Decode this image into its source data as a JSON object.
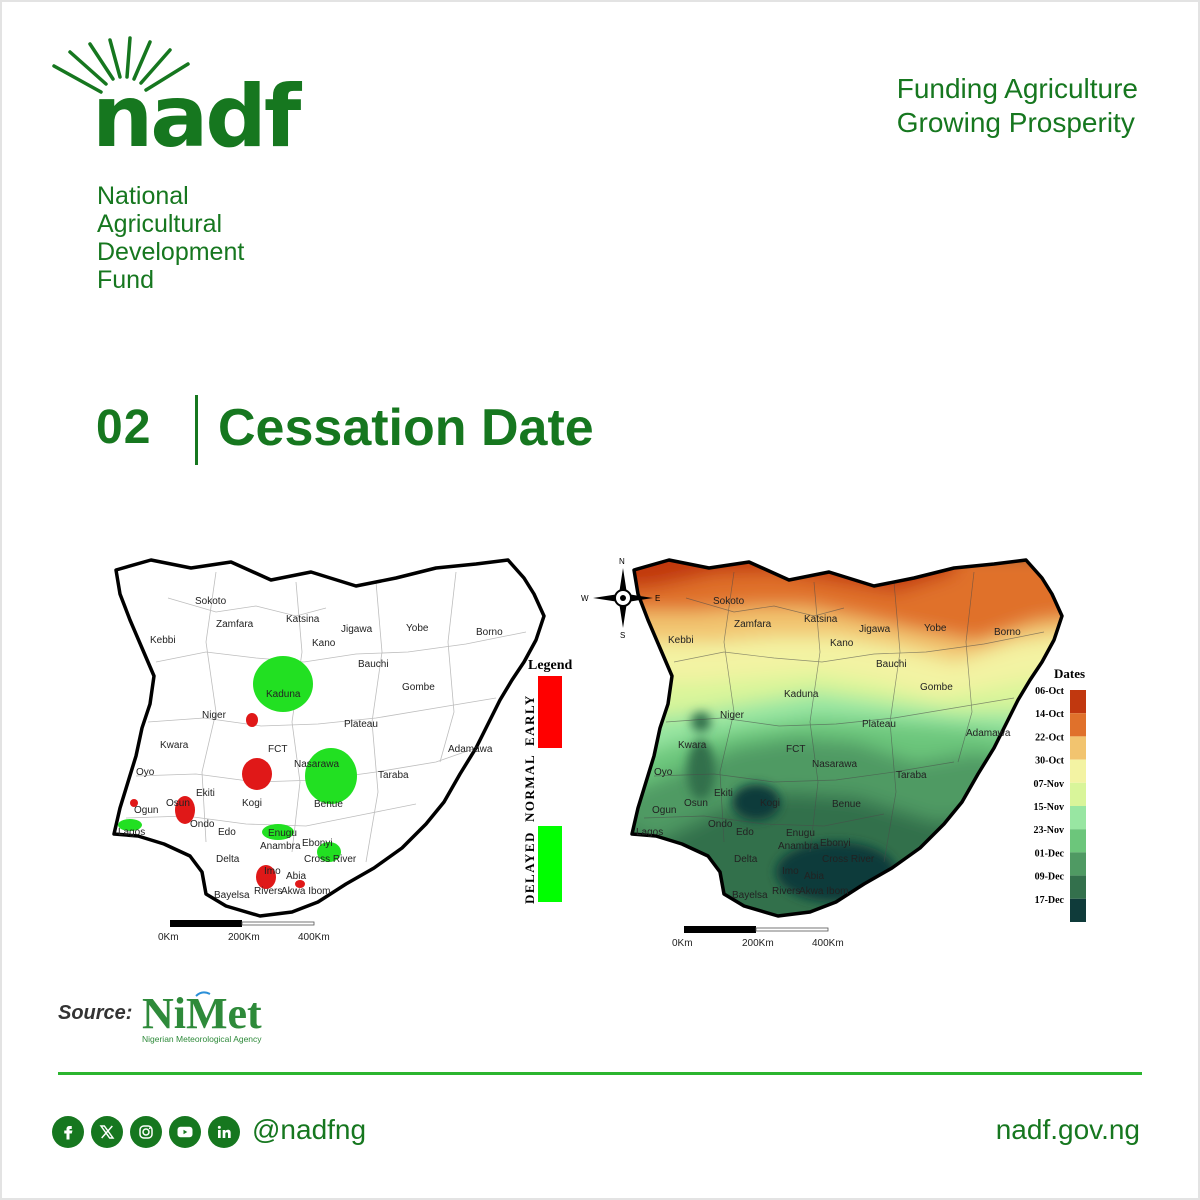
{
  "brand": {
    "logo_text": "nadf",
    "org_name_lines": [
      "National",
      "Agricultural",
      "Development",
      "Fund"
    ],
    "tagline_lines": [
      "Funding Agriculture",
      "Growing Prosperity"
    ],
    "primary_color": "#16771f",
    "accent_color": "#2bb52f"
  },
  "section": {
    "number": "02",
    "title": "Cessation Date"
  },
  "left_map": {
    "legend_title": "Legend",
    "legend_items": [
      {
        "label": "EARLY",
        "color": "#ff0000"
      },
      {
        "label": "NORMAL",
        "color": "#ffffff"
      },
      {
        "label": "DELAYED",
        "color": "#00ff00"
      }
    ],
    "scale_labels": [
      "0Km",
      "200Km",
      "400Km"
    ],
    "states": [
      "Sokoto",
      "Zamfara",
      "Katsina",
      "Jigawa",
      "Yobe",
      "Borno",
      "Kebbi",
      "Kano",
      "Bauchi",
      "Gombe",
      "Kaduna",
      "Niger",
      "Plateau",
      "Adamawa",
      "Kwara",
      "FCT",
      "Nasarawa",
      "Oyo",
      "Taraba",
      "Ekiti",
      "Osun",
      "Kogi",
      "Benue",
      "Ogun",
      "Ondo",
      "Edo",
      "Lagos",
      "Enugu",
      "Ebonyi",
      "Anambra",
      "Delta",
      "Cross River",
      "Imo",
      "Abia",
      "Rivers",
      "Akwa Ibom",
      "Bayelsa"
    ]
  },
  "right_map": {
    "compass": [
      "N",
      "E",
      "S",
      "W"
    ],
    "legend_title": "Dates",
    "legend_items": [
      {
        "label": "06-Oct",
        "color": "#c1380f"
      },
      {
        "label": "14-Oct",
        "color": "#e0712b"
      },
      {
        "label": "22-Oct",
        "color": "#f2c46f"
      },
      {
        "label": "30-Oct",
        "color": "#f3f3a3"
      },
      {
        "label": "07-Nov",
        "color": "#d9f59a"
      },
      {
        "label": "15-Nov",
        "color": "#98e6a2"
      },
      {
        "label": "23-Nov",
        "color": "#6cc67b"
      },
      {
        "label": "01-Dec",
        "color": "#4f9a63"
      },
      {
        "label": "09-Dec",
        "color": "#33704c"
      },
      {
        "label": "17-Dec",
        "color": "#0f3b3a"
      }
    ],
    "scale_labels": [
      "0Km",
      "200Km",
      "400Km"
    ]
  },
  "source": {
    "label": "Source:",
    "agency_logo_text": "NiMet",
    "agency_name": "Nigerian Meteorological Agency"
  },
  "footer": {
    "social_icons": [
      "facebook-icon",
      "x-icon",
      "instagram-icon",
      "youtube-icon",
      "linkedin-icon"
    ],
    "handle": "@nadfng",
    "website": "nadf.gov.ng"
  }
}
